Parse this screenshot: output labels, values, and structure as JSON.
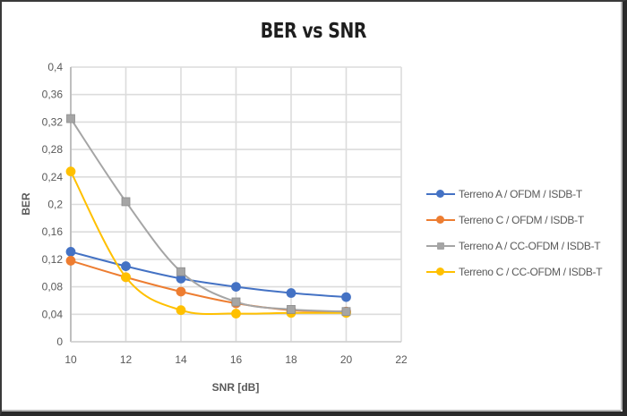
{
  "chart_data": {
    "type": "line",
    "title": "BER vs SNR",
    "xlabel": "SNR [dB]",
    "ylabel": "BER",
    "x": [
      10,
      12,
      14,
      16,
      18,
      20
    ],
    "xlim": [
      10,
      22
    ],
    "ylim": [
      0,
      0.4
    ],
    "x_ticks": [
      "10",
      "12",
      "14",
      "16",
      "18",
      "20",
      "22"
    ],
    "y_ticks": [
      "0",
      "0,04",
      "0,08",
      "0,12",
      "0,16",
      "0,2",
      "0,24",
      "0,28",
      "0,32",
      "0,36",
      "0,4"
    ],
    "grid": true,
    "smooth": true,
    "legend_position": "right",
    "series": [
      {
        "name": "Terreno A / OFDM / ISDB-T",
        "color": "#4472C4",
        "marker": "circle",
        "values": [
          0.131,
          0.11,
          0.092,
          0.08,
          0.071,
          0.065
        ]
      },
      {
        "name": "Terreno C / OFDM / ISDB-T",
        "color": "#ED7D31",
        "marker": "circle",
        "values": [
          0.118,
          0.094,
          0.073,
          0.056,
          0.046,
          0.044
        ]
      },
      {
        "name": "Terreno A / CC-OFDM / ISDB-T",
        "color": "#A5A5A5",
        "marker": "square",
        "values": [
          0.325,
          0.204,
          0.102,
          0.058,
          0.047,
          0.044
        ]
      },
      {
        "name": "Terreno C / CC-OFDM / ISDB-T",
        "color": "#FFC000",
        "marker": "circle",
        "values": [
          0.248,
          0.094,
          0.046,
          0.041,
          0.042,
          0.042
        ]
      }
    ]
  }
}
